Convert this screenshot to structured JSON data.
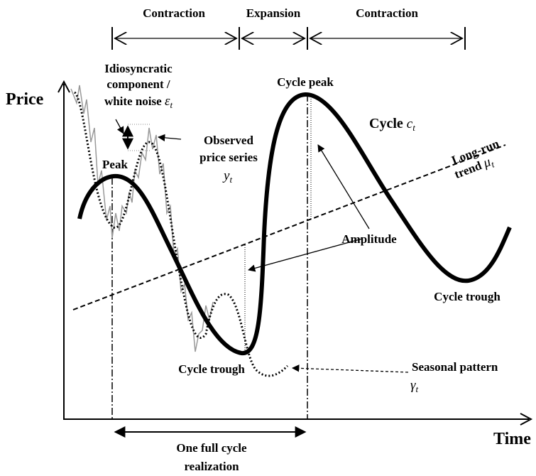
{
  "phases": [
    {
      "label": "Contraction"
    },
    {
      "label": "Expansion"
    },
    {
      "label": "Contraction"
    }
  ],
  "axes": {
    "y_label": "Price",
    "x_label": "Time"
  },
  "annotations": {
    "noise": {
      "lines": [
        "Idiosyncratic",
        "component /",
        "white noise"
      ],
      "symbol": "ε",
      "subscript": "t"
    },
    "observed": {
      "lines": [
        "Observed",
        "price series"
      ],
      "symbol": "y",
      "subscript": "t"
    },
    "peak": "Peak",
    "cycle_peak": "Cycle peak",
    "cycle": {
      "label": "Cycle",
      "symbol": "c",
      "subscript": "t"
    },
    "trend": {
      "lines": [
        "Long-run",
        "trend"
      ],
      "symbol": "μ",
      "subscript": "t"
    },
    "amplitude": "Amplitude",
    "cycle_trough_1": "Cycle trough",
    "cycle_trough_2": "Cycle trough",
    "seasonal": {
      "label": "Seasonal pattern",
      "symbol": "γ",
      "subscript": "t"
    },
    "full_cycle": {
      "lines": [
        "One full cycle",
        "realization"
      ]
    }
  }
}
